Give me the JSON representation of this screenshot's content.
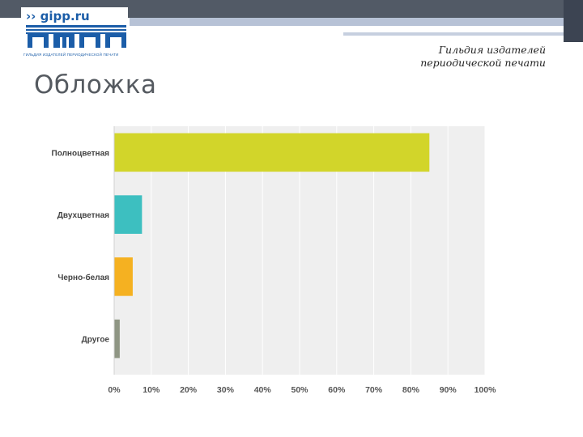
{
  "header": {
    "logo_domain": "›› gipp.ru",
    "logo_caption": "ГИЛЬДИЯ ИЗДАТЕЛЕЙ ПЕРИОДИЧЕСКОЙ ПЕЧАТИ",
    "org_name_line1": "Гильдия издателей",
    "org_name_line2": "периодической печати"
  },
  "page": {
    "title": "Обложка"
  },
  "colors": {
    "topbar": "#525a66",
    "brand_blue": "#1b5da8",
    "plot_bg": "#efefef"
  },
  "chart_data": {
    "type": "bar",
    "orientation": "horizontal",
    "categories": [
      "Полноцветная",
      "Двухцветная",
      "Черно-белая",
      "Другое"
    ],
    "values": [
      85,
      7.5,
      5,
      1.5
    ],
    "colors": [
      "#d2d52a",
      "#3dbfc0",
      "#f5b121",
      "#8f9684"
    ],
    "xlim": [
      0,
      100
    ],
    "xticks": [
      "0%",
      "10%",
      "20%",
      "30%",
      "40%",
      "50%",
      "60%",
      "70%",
      "80%",
      "90%",
      "100%"
    ],
    "grid": true,
    "legend": "none"
  }
}
